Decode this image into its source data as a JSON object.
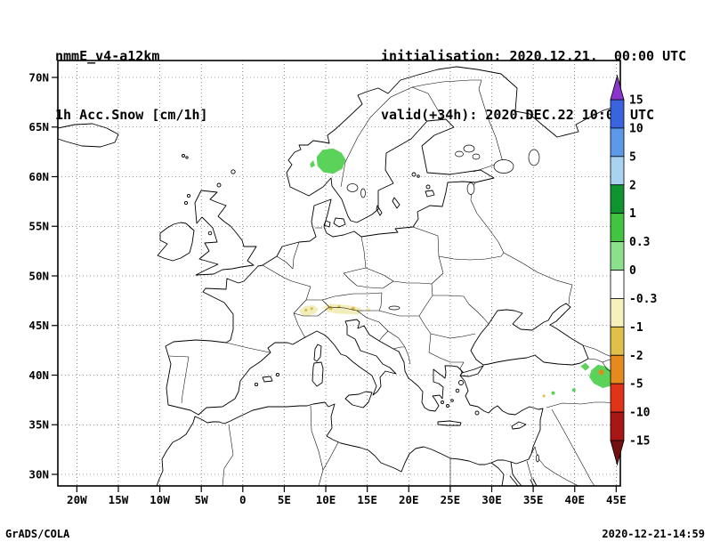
{
  "header": {
    "model": "nmmE_v4-a12km",
    "field": "1h Acc.Snow [cm/1h]",
    "initialisation": "initialisation: 2020.12.21.  00:00 UTC",
    "valid": "valid(+34h): 2020.DEC.22 10:00 UTC"
  },
  "footer": {
    "left": "GrADS/COLA",
    "right": "2020-12-21-14:59"
  },
  "chart_data": {
    "type": "heatmap",
    "title": "1h Acc.Snow [cm/1h]",
    "model_run": "nmmE_v4-a12km",
    "init_time": "2020.12.21. 00:00 UTC",
    "valid_time": "2020.DEC.22 10:00 UTC (+34h)",
    "units": "cm/1h",
    "projection": "latlon",
    "extent": {
      "lon_min": -22.3,
      "lon_max": 45.5,
      "lat_min": 28.8,
      "lat_max": 71.7
    },
    "grid": "dotted 5-degree graticule",
    "lon_ticks": [
      {
        "v": -20,
        "label": "20W"
      },
      {
        "v": -15,
        "label": "15W"
      },
      {
        "v": -10,
        "label": "10W"
      },
      {
        "v": -5,
        "label": "5W"
      },
      {
        "v": 0,
        "label": "0"
      },
      {
        "v": 5,
        "label": "5E"
      },
      {
        "v": 10,
        "label": "10E"
      },
      {
        "v": 15,
        "label": "15E"
      },
      {
        "v": 20,
        "label": "20E"
      },
      {
        "v": 25,
        "label": "25E"
      },
      {
        "v": 30,
        "label": "30E"
      },
      {
        "v": 35,
        "label": "35E"
      },
      {
        "v": 40,
        "label": "40E"
      },
      {
        "v": 45,
        "label": "45E"
      }
    ],
    "lat_ticks": [
      {
        "v": 30,
        "label": "30N"
      },
      {
        "v": 35,
        "label": "35N"
      },
      {
        "v": 40,
        "label": "40N"
      },
      {
        "v": 45,
        "label": "45N"
      },
      {
        "v": 50,
        "label": "50N"
      },
      {
        "v": 55,
        "label": "55N"
      },
      {
        "v": 60,
        "label": "60N"
      },
      {
        "v": 65,
        "label": "65N"
      },
      {
        "v": 70,
        "label": "70N"
      }
    ],
    "colorbar": {
      "orientation": "vertical",
      "position": "right",
      "tick_labels": [
        "15",
        "10",
        "5",
        "2",
        "1",
        "0.3",
        "0",
        "-0.3",
        "-1",
        "-2",
        "-5",
        "-10",
        "-15"
      ],
      "colors": [
        "#8a35cc",
        "#3a63e0",
        "#5c99e8",
        "#a8d2f0",
        "#109430",
        "#42c342",
        "#8ce08c",
        "#ffffff",
        "#f5f0bc",
        "#e0c04a",
        "#e6891e",
        "#e03418",
        "#a81616",
        "#731010"
      ]
    },
    "shaded_regions": [
      {
        "name": "southern-norway",
        "level": "0.3 to 1 cm/1h",
        "color": "#5bd35b",
        "polygons": [
          [
            [
              8.9,
              62.0
            ],
            [
              9.6,
              62.7
            ],
            [
              10.9,
              62.85
            ],
            [
              11.9,
              62.4
            ],
            [
              12.4,
              61.7
            ],
            [
              12.0,
              60.8
            ],
            [
              10.9,
              60.3
            ],
            [
              9.7,
              60.45
            ],
            [
              9.0,
              61.1
            ]
          ],
          [
            [
              8.1,
              61.3
            ],
            [
              8.5,
              61.65
            ],
            [
              8.7,
              61.1
            ],
            [
              8.2,
              60.9
            ]
          ]
        ],
        "dots": []
      },
      {
        "name": "alps",
        "level": "-0.3 to -1 cm/1h with -1 to -2 spots",
        "color": "#f2eebb",
        "polygons": [
          [
            [
              6.8,
              46.5
            ],
            [
              7.5,
              46.95
            ],
            [
              8.5,
              47.05
            ],
            [
              9.1,
              46.7
            ],
            [
              8.8,
              46.25
            ],
            [
              7.9,
              45.95
            ],
            [
              7.1,
              46.05
            ]
          ],
          [
            [
              9.6,
              46.85
            ],
            [
              10.6,
              47.2
            ],
            [
              11.8,
              47.1
            ],
            [
              13.0,
              47.0
            ],
            [
              14.1,
              46.8
            ],
            [
              14.5,
              46.45
            ],
            [
              13.9,
              46.1
            ],
            [
              12.6,
              46.15
            ],
            [
              11.3,
              46.2
            ],
            [
              10.2,
              46.4
            ]
          ]
        ],
        "dots": [
          [
            10.6,
            46.75,
            2,
            "#d9ba45"
          ],
          [
            11.6,
            46.9,
            1.5,
            "#d9ba45"
          ],
          [
            13.3,
            46.7,
            2,
            "#d9ba45"
          ],
          [
            7.6,
            46.55,
            1.5,
            "#d9ba45"
          ],
          [
            8.3,
            46.7,
            1.5,
            "#d9ba45"
          ],
          [
            15.1,
            46.6,
            2.5,
            "#f2eebb"
          ]
        ]
      },
      {
        "name": "eastern-anatolia-caucasus",
        "level": "0.3 to 1 cm/1h with -2 to -5 spot",
        "color": "#5bd35b",
        "polygons": [
          [
            [
              42.0,
              40.5
            ],
            [
              42.8,
              41.05
            ],
            [
              43.8,
              40.85
            ],
            [
              44.6,
              40.3
            ],
            [
              44.95,
              39.6
            ],
            [
              44.5,
              38.95
            ],
            [
              43.4,
              38.7
            ],
            [
              42.3,
              39.15
            ],
            [
              41.75,
              39.8
            ]
          ],
          [
            [
              40.7,
              40.9
            ],
            [
              41.3,
              41.25
            ],
            [
              41.8,
              40.8
            ],
            [
              41.3,
              40.45
            ]
          ]
        ],
        "dots": [
          [
            39.9,
            38.5,
            2,
            "#5bd35b"
          ],
          [
            37.4,
            38.2,
            2,
            "#5bd35b"
          ],
          [
            36.3,
            37.9,
            1.5,
            "#e0c04a"
          ],
          [
            43.2,
            40.3,
            3,
            "#e2891c"
          ]
        ]
      }
    ]
  }
}
